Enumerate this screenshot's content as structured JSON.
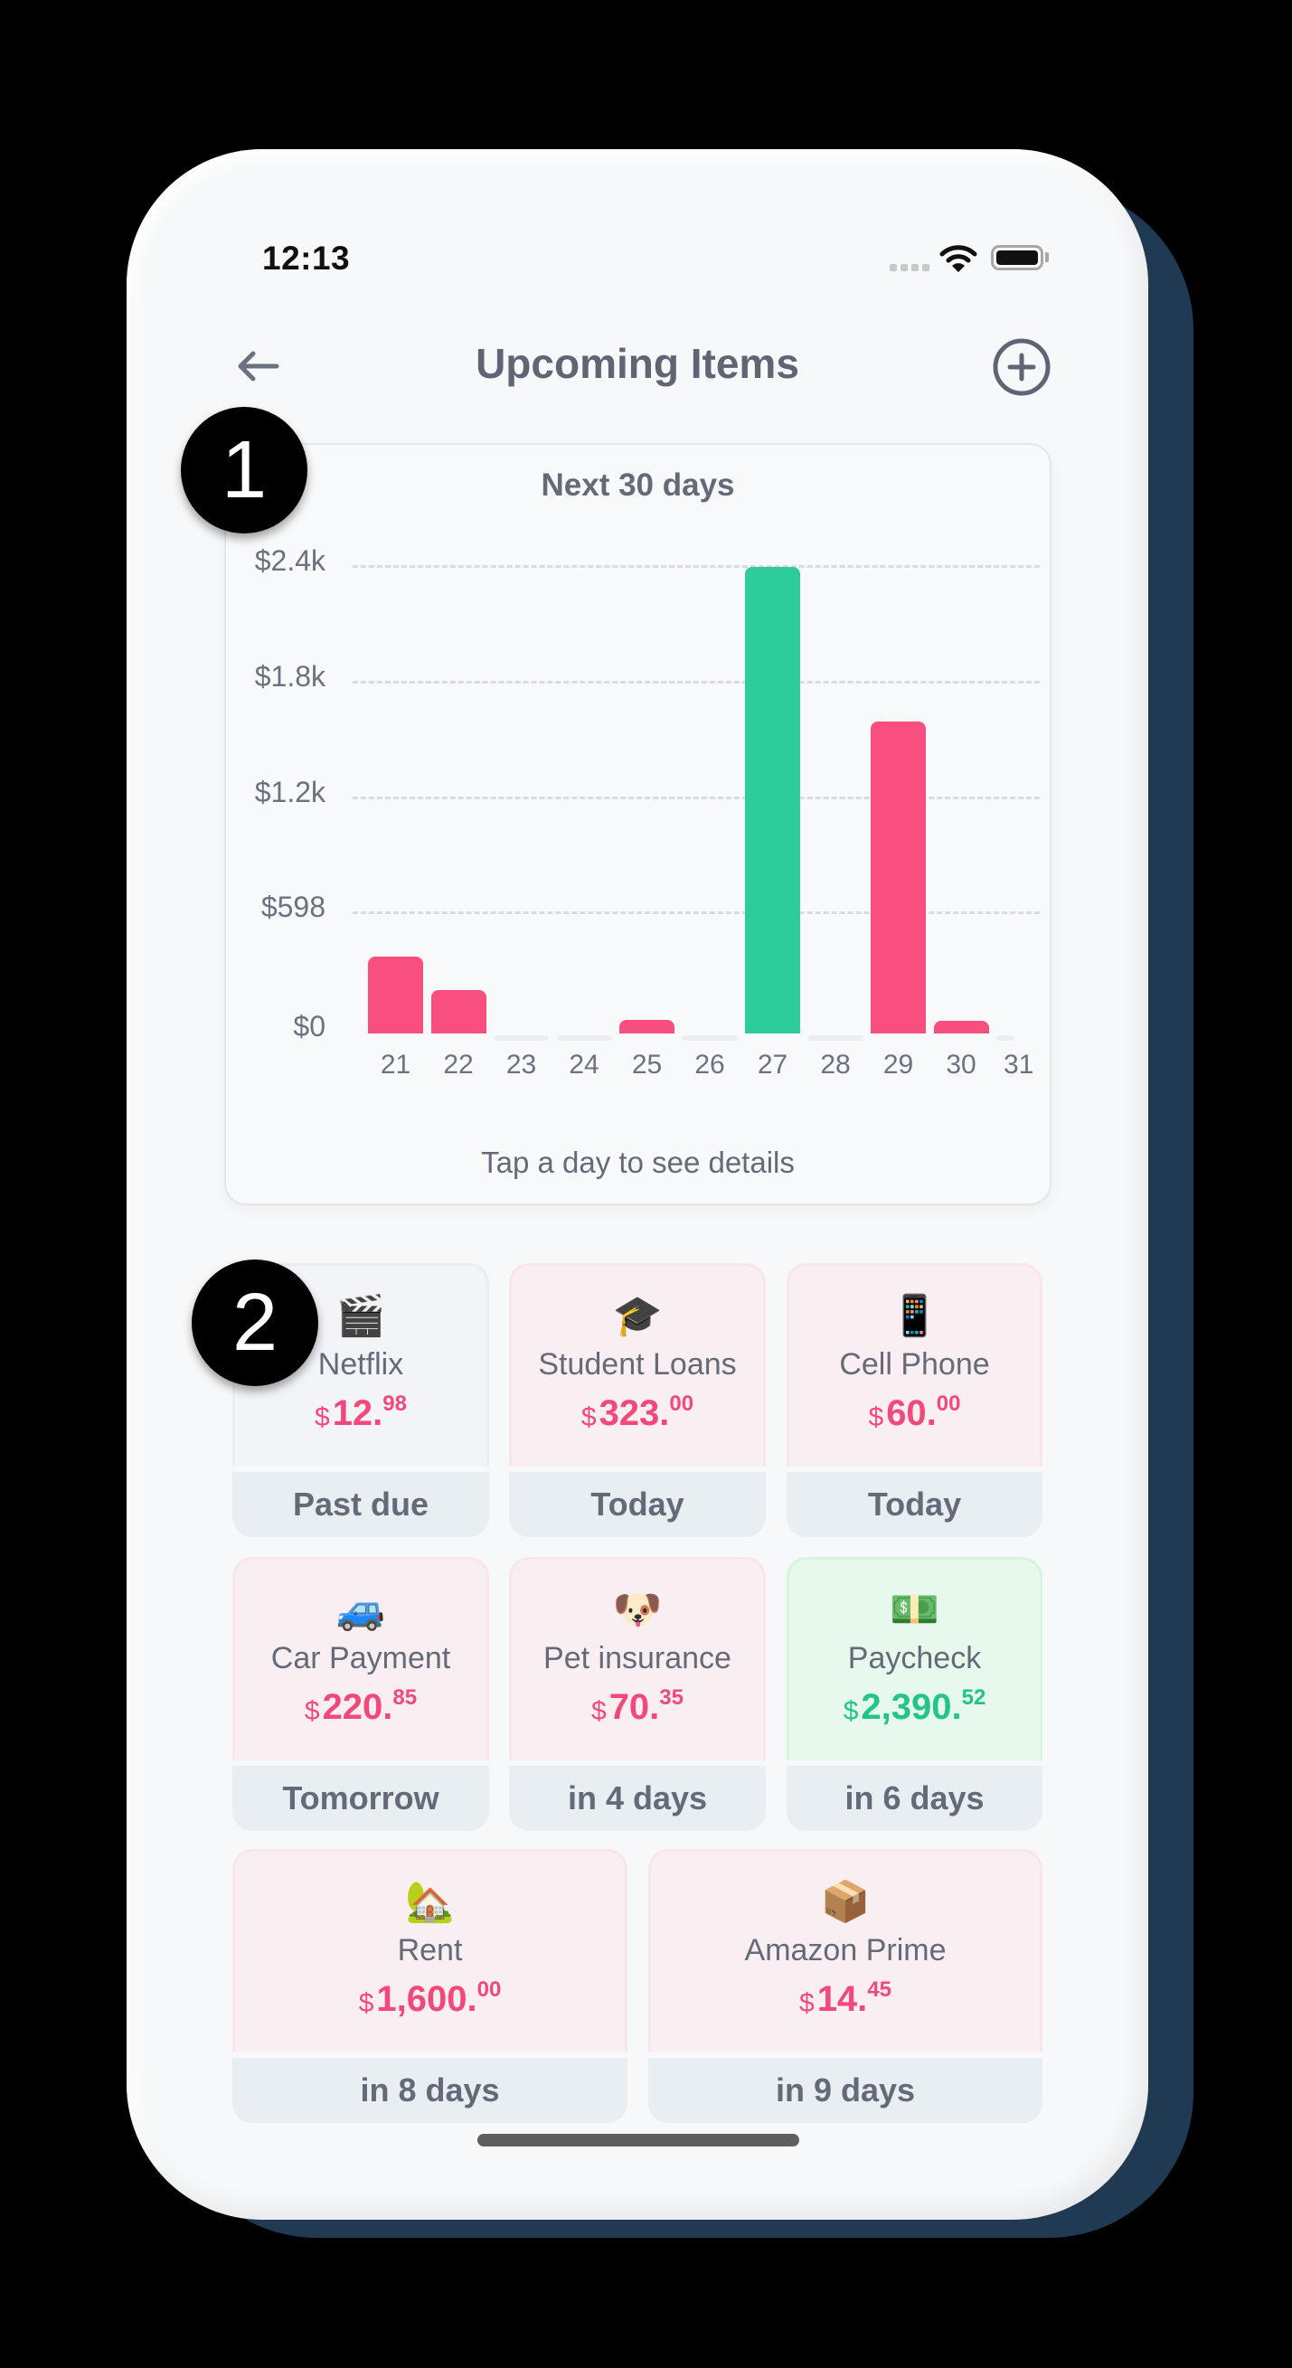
{
  "status_bar": {
    "time": "12:13",
    "signal_icon": "signal-dots-icon",
    "wifi_icon": "wifi-icon",
    "battery_icon": "battery-icon"
  },
  "header": {
    "title": "Upcoming Items",
    "back_icon": "arrow-left-icon",
    "add_icon": "plus-circle-icon"
  },
  "chart_card": {
    "title": "Next 30 days",
    "hint": "Tap a day to see details"
  },
  "chart_data": {
    "type": "bar",
    "title": "Next 30 days",
    "xlabel": "",
    "ylabel": "",
    "categories": [
      "21",
      "22",
      "23",
      "24",
      "25",
      "26",
      "27",
      "28",
      "29",
      "30",
      "31"
    ],
    "values": [
      395.98,
      220.85,
      0,
      0,
      70.35,
      0,
      2390.52,
      0,
      1600.0,
      14.45,
      0
    ],
    "bar_colors": [
      "#f94f7f",
      "#f94f7f",
      "#eceef1",
      "#eceef1",
      "#f94f7f",
      "#eceef1",
      "#2ecc9a",
      "#eceef1",
      "#f94f7f",
      "#f94f7f",
      "#eceef1"
    ],
    "series_types": [
      "expense",
      "expense",
      "none",
      "none",
      "expense",
      "none",
      "income",
      "none",
      "expense",
      "expense",
      "none"
    ],
    "y_ticks": [
      "$0",
      "$598",
      "$1.2k",
      "$1.8k",
      "$2.4k"
    ],
    "y_tick_values": [
      0,
      598,
      1195,
      1793,
      2391
    ],
    "ylim": [
      0,
      2391
    ],
    "grid": true,
    "legend": "none",
    "last_tick_clipped": true
  },
  "colors": {
    "expense": "#f94f7f",
    "income": "#2ecc9a",
    "expense_text": "#f2487a",
    "income_text": "#23c488",
    "text_gray": "#646a77",
    "card_bill_bg": "#f9eff2",
    "card_income_bg": "#e6f9ec",
    "due_bg": "#e9eef2"
  },
  "items": [
    {
      "emoji": "🎬",
      "icon": "clapper-board-icon",
      "name": "Netflix",
      "currency": "$",
      "whole": "12.",
      "cents": "98",
      "due": "Past due",
      "type": "neutral"
    },
    {
      "emoji": "🎓",
      "icon": "graduation-cap-icon",
      "name": "Student Loans",
      "currency": "$",
      "whole": "323.",
      "cents": "00",
      "due": "Today",
      "type": "bill"
    },
    {
      "emoji": "📱",
      "icon": "mobile-phone-icon",
      "name": "Cell Phone",
      "currency": "$",
      "whole": "60.",
      "cents": "00",
      "due": "Today",
      "type": "bill"
    },
    {
      "emoji": "🚙",
      "icon": "car-icon",
      "name": "Car Payment",
      "currency": "$",
      "whole": "220.",
      "cents": "85",
      "due": "Tomorrow",
      "type": "bill"
    },
    {
      "emoji": "🐶",
      "icon": "dog-face-icon",
      "name": "Pet insurance",
      "currency": "$",
      "whole": "70.",
      "cents": "35",
      "due": "in 4 days",
      "type": "bill"
    },
    {
      "emoji": "💵",
      "icon": "dollar-banknote-icon",
      "name": "Paycheck",
      "currency": "$",
      "whole": "2,390.",
      "cents": "52",
      "due": "in 6 days",
      "type": "income"
    },
    {
      "emoji": "🏡",
      "icon": "house-with-garden-icon",
      "name": "Rent",
      "currency": "$",
      "whole": "1,600.",
      "cents": "00",
      "due": "in 8 days",
      "type": "bill"
    },
    {
      "emoji": "📦",
      "icon": "package-icon",
      "name": "Amazon Prime",
      "currency": "$",
      "whole": "14.",
      "cents": "45",
      "due": "in 9 days",
      "type": "bill"
    }
  ],
  "annotations": [
    {
      "label": "1"
    },
    {
      "label": "2"
    }
  ]
}
